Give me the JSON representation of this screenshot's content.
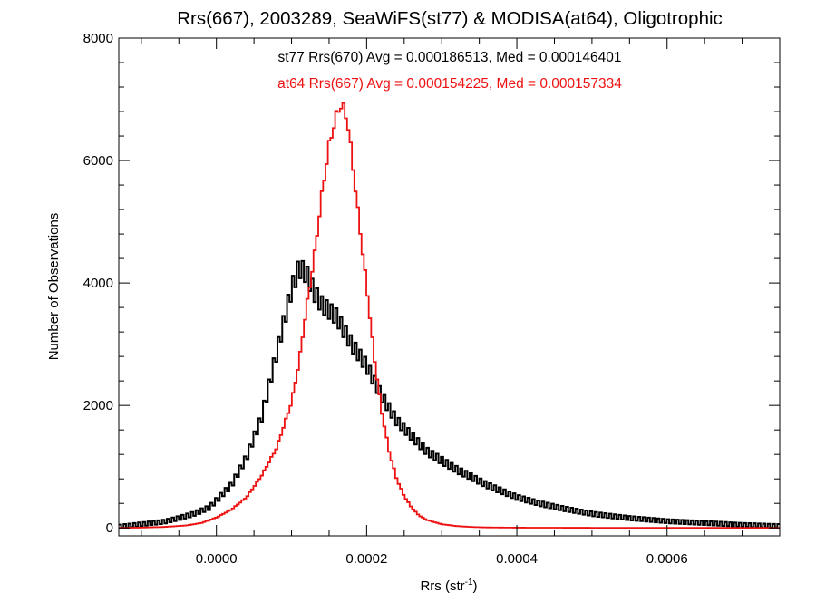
{
  "chart_data": {
    "type": "line",
    "title": "Rrs(667), 2003289, SeaWiFS(st77) & MODISA(at64), Oligotrophic",
    "xlabel": "Rrs (str",
    "xlabel_superscript": "-1",
    "xlabel_suffix": ")",
    "ylabel": "Number of Observations",
    "xlim": [
      -0.00013,
      0.00075
    ],
    "ylim": [
      -130,
      8000
    ],
    "x_ticks": [
      0.0,
      0.0002,
      0.0004,
      0.0006
    ],
    "x_tick_labels": [
      "0.0000",
      "0.0002",
      "0.0004",
      "0.0006"
    ],
    "y_ticks": [
      0,
      2000,
      4000,
      6000,
      8000
    ],
    "y_tick_labels": [
      "0",
      "2000",
      "4000",
      "6000",
      "8000"
    ],
    "grid": false,
    "legend_position": "top-center",
    "series": [
      {
        "name": "st77 Rrs(670) Avg = 0.000186513, Med = 0.000146401",
        "color": "#000000",
        "style": "step-noisy",
        "x": [
          -0.00013,
          -0.0001,
          -7e-05,
          -5e-05,
          -3e-05,
          -1e-05,
          0.0,
          2e-05,
          4e-05,
          6e-05,
          8e-05,
          0.0001,
          0.00011,
          0.00012,
          0.00013,
          0.00014,
          0.00015,
          0.00016,
          0.00018,
          0.0002,
          0.00022,
          0.00024,
          0.00026,
          0.00028,
          0.0003,
          0.00032,
          0.00034,
          0.00036,
          0.00038,
          0.0004,
          0.00043,
          0.00046,
          0.0005,
          0.00055,
          0.0006,
          0.00065,
          0.0007,
          0.00075
        ],
        "y": [
          20,
          60,
          100,
          160,
          230,
          330,
          450,
          700,
          1150,
          1800,
          2850,
          3900,
          4250,
          4150,
          3850,
          3650,
          3550,
          3450,
          3000,
          2650,
          2150,
          1750,
          1500,
          1250,
          1100,
          950,
          830,
          700,
          600,
          500,
          400,
          320,
          230,
          160,
          110,
          80,
          50,
          30
        ]
      },
      {
        "name": "at64 Rrs(667) Avg = 0.000154225, Med = 0.000157334",
        "color": "#ee1111",
        "style": "step",
        "x": [
          -0.00013,
          -0.0001,
          -7e-05,
          -4e-05,
          -2e-05,
          0.0,
          2e-05,
          4e-05,
          6e-05,
          8e-05,
          0.0001,
          0.00011,
          0.00012,
          0.00013,
          0.00014,
          0.00015,
          0.00016,
          0.000165,
          0.00017,
          0.000175,
          0.00018,
          0.00019,
          0.0002,
          0.00021,
          0.00022,
          0.00023,
          0.00024,
          0.00025,
          0.00026,
          0.00027,
          0.00028,
          0.0003,
          0.00032,
          0.00034,
          0.00036,
          0.0004,
          0.0005,
          0.00075
        ],
        "y": [
          0,
          5,
          15,
          40,
          80,
          170,
          300,
          500,
          850,
          1300,
          2050,
          2700,
          3600,
          4400,
          5400,
          6250,
          6750,
          6900,
          6850,
          6600,
          6100,
          5000,
          3950,
          2800,
          1900,
          1250,
          800,
          520,
          330,
          200,
          130,
          60,
          30,
          15,
          8,
          4,
          2,
          0
        ]
      }
    ]
  }
}
